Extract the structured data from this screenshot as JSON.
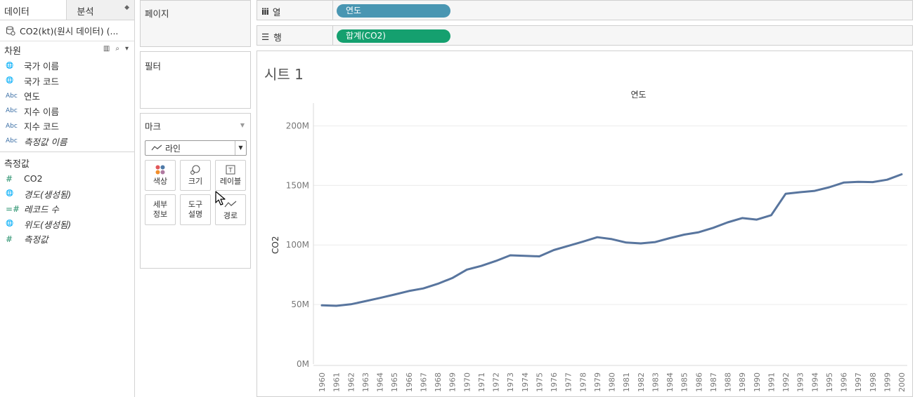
{
  "left_pane": {
    "tabs": [
      "데이터",
      "분석"
    ],
    "datasource": "CO2(kt)(원시 데이터) (...",
    "dimensions_header": "차원",
    "dimensions": [
      {
        "type": "globe",
        "label": "국가 이름",
        "italic": false
      },
      {
        "type": "globe",
        "label": "국가 코드",
        "italic": false
      },
      {
        "type": "abc",
        "label": "연도",
        "italic": false
      },
      {
        "type": "abc",
        "label": "지수 이름",
        "italic": false
      },
      {
        "type": "abc",
        "label": "지수 코드",
        "italic": false
      },
      {
        "type": "abc",
        "label": "측정값 이름",
        "italic": true
      }
    ],
    "measures_header": "측정값",
    "measures": [
      {
        "type": "num",
        "label": "CO2",
        "italic": false
      },
      {
        "type": "globe",
        "label": "경도(생성됨)",
        "italic": true
      },
      {
        "type": "numdot",
        "label": "레코드 수",
        "italic": true
      },
      {
        "type": "globe",
        "label": "위도(생성됨)",
        "italic": true
      },
      {
        "type": "num",
        "label": "측정값",
        "italic": true
      }
    ],
    "type_glyphs": {
      "globe": "🌐",
      "abc": "Abc",
      "num": "#",
      "numdot": "=#"
    }
  },
  "cards": {
    "pages": "페이지",
    "filters": "필터",
    "marks": "마크",
    "mark_type": "라인",
    "buttons": {
      "color": "색상",
      "size": "크기",
      "label": "레이블",
      "detail": [
        "세부",
        "정보"
      ],
      "tooltip": [
        "도구",
        "설명"
      ],
      "path": "경로"
    }
  },
  "shelves": {
    "columns_label": "열",
    "columns_pill": "연도",
    "rows_label": "행",
    "rows_pill": "합계(CO2)"
  },
  "colors": {
    "line": "#58759e",
    "pill_dimension": "#4996b2",
    "pill_measure": "#15a06f"
  },
  "view": {
    "sheet_title": "시트 1"
  },
  "chart_data": {
    "type": "line",
    "title": "",
    "header": "연도",
    "xlabel": "",
    "ylabel": "CO2",
    "x": [
      "1960",
      "1961",
      "1962",
      "1963",
      "1964",
      "1965",
      "1966",
      "1967",
      "1968",
      "1969",
      "1970",
      "1971",
      "1972",
      "1973",
      "1974",
      "1975",
      "1976",
      "1977",
      "1978",
      "1979",
      "1980",
      "1981",
      "1982",
      "1983",
      "1984",
      "1985",
      "1986",
      "1987",
      "1988",
      "1989",
      "1990",
      "1991",
      "1992",
      "1993",
      "1994",
      "1995",
      "1996",
      "1997",
      "1998",
      "1999",
      "2000"
    ],
    "series": [
      {
        "values": [
          49.3,
          48.9,
          50.2,
          52.8,
          55.5,
          58.3,
          61.3,
          63.5,
          67.4,
          72.2,
          79.3,
          82.4,
          86.5,
          91.3,
          90.9,
          90.4,
          95.7,
          99.2,
          102.7,
          106.5,
          104.9,
          102.0,
          101.3,
          102.4,
          105.7,
          108.7,
          110.7,
          114.4,
          119.0,
          122.6,
          121.3,
          125.0,
          143.0,
          144.3,
          145.4,
          148.4,
          152.4,
          153.0,
          152.8,
          154.8,
          159.3
        ]
      }
    ],
    "yticks": [
      {
        "v": 0,
        "label": "0M"
      },
      {
        "v": 50,
        "label": "50M"
      },
      {
        "v": 100,
        "label": "100M"
      },
      {
        "v": 150,
        "label": "150M"
      },
      {
        "v": 200,
        "label": "200M"
      }
    ],
    "ylim": [
      0,
      225
    ],
    "grid": true
  }
}
